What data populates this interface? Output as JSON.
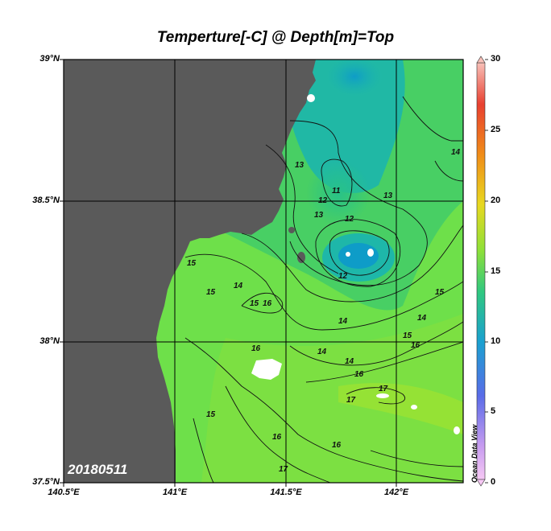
{
  "map": {
    "title": "Temperture[-C] @ Depth[m]=Top",
    "date_stamp": "20180511",
    "watermark": "Ocean Data View",
    "lat_labels": [
      "39°N",
      "38.5°N",
      "38°N",
      "37.5°N"
    ],
    "lon_labels": [
      "140.5°E",
      "141°E",
      "141.5°E",
      "142°E"
    ],
    "colorbar": {
      "ticks": [
        "30",
        "25",
        "20",
        "15",
        "10",
        "5",
        "0"
      ],
      "min": 0,
      "max": 30
    },
    "contour_labels": [
      "11",
      "12",
      "12",
      "12",
      "13",
      "13",
      "13",
      "14",
      "14",
      "14",
      "14",
      "14",
      "14",
      "15",
      "15",
      "15",
      "15",
      "15",
      "15",
      "16",
      "16",
      "16",
      "16",
      "16",
      "16",
      "17",
      "17",
      "17"
    ],
    "colors": {
      "land": "#5a5a5a",
      "missing": "#ffffff",
      "warm_water": "#6ee04a",
      "cool_water": "#1ab4b0"
    }
  }
}
